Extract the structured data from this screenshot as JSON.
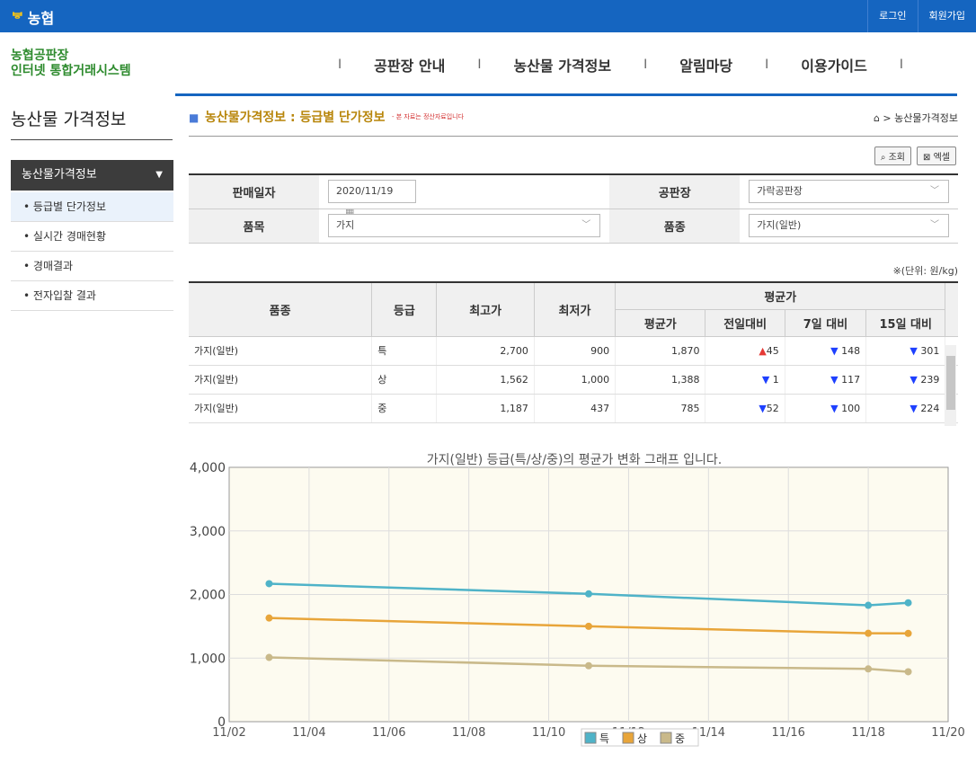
{
  "topbar": {
    "brand": "농협",
    "login": "로그인",
    "join": "회원가입"
  },
  "site": {
    "title_l1": "농협공판장",
    "title_l2": "인터넷 통합거래시스템"
  },
  "gnb": [
    "공판장 안내",
    "농산물 가격정보",
    "알림마당",
    "이용가이드"
  ],
  "lnb": {
    "title": "농산물 가격정보",
    "head": "농산물가격정보",
    "items": [
      "등급별 단가정보",
      "실시간 경매현황",
      "경매결과",
      "전자입찰 결과"
    ]
  },
  "page": {
    "title": "농산물가격정보 : 등급별 단가정보",
    "note": "- 본 자료는 정산자료입니다",
    "breadcrumb": "농산물가격정보",
    "btn_search": "조회",
    "btn_excel": "엑셀"
  },
  "filter": {
    "date_label": "판매일자",
    "date_value": "2020/11/19",
    "market_label": "공판장",
    "market_value": "가락공판장",
    "item_label": "품목",
    "item_value": "가지",
    "variety_label": "품종",
    "variety_value": "가지(일반)"
  },
  "unit": "※(단위: 원/kg)",
  "table": {
    "headers": {
      "variety": "품종",
      "grade": "등급",
      "max": "최고가",
      "min": "최저가",
      "avg_group": "평균가",
      "avg": "평균가",
      "prev": "전일대비",
      "d7": "7일 대비",
      "d15": "15일 대비"
    },
    "rows": [
      {
        "variety": "가지(일반)",
        "grade": "특",
        "max": "2,700",
        "min": "900",
        "avg": "1,870",
        "prev": "45",
        "prev_dir": "up",
        "d7": "148",
        "d15": "301"
      },
      {
        "variety": "가지(일반)",
        "grade": "상",
        "max": "1,562",
        "min": "1,000",
        "avg": "1,388",
        "prev": "1",
        "prev_dir": "down",
        "d7": "117",
        "d15": "239"
      },
      {
        "variety": "가지(일반)",
        "grade": "중",
        "max": "1,187",
        "min": "437",
        "avg": "785",
        "prev": "52",
        "prev_dir": "down",
        "d7": "100",
        "d15": "224"
      }
    ]
  },
  "chart_data": {
    "type": "line",
    "title": "가지(일반) 등급(특/상/중)의 평균가 변화 그래프 입니다.",
    "x_ticks": [
      "11/02",
      "11/04",
      "11/06",
      "11/08",
      "11/10",
      "11/12",
      "11/14",
      "11/16",
      "11/18",
      "11/20"
    ],
    "xlim": [
      "2020-11-02",
      "2020-11-20"
    ],
    "y_ticks": [
      "0",
      "1,000",
      "2,000",
      "3,000",
      "4,000"
    ],
    "ylim": [
      0,
      4000
    ],
    "x": [
      "2020-11-03",
      "2020-11-11",
      "2020-11-18",
      "2020-11-19"
    ],
    "series": [
      {
        "name": "특",
        "color": "#4fb3c8",
        "values": [
          2170,
          2010,
          1830,
          1870
        ]
      },
      {
        "name": "상",
        "color": "#e8a53a",
        "values": [
          1630,
          1500,
          1390,
          1388
        ]
      },
      {
        "name": "중",
        "color": "#c9b98a",
        "values": [
          1010,
          880,
          830,
          785
        ]
      }
    ],
    "grid": true,
    "legend": "bottom-center",
    "background": "#fdfbf0"
  }
}
